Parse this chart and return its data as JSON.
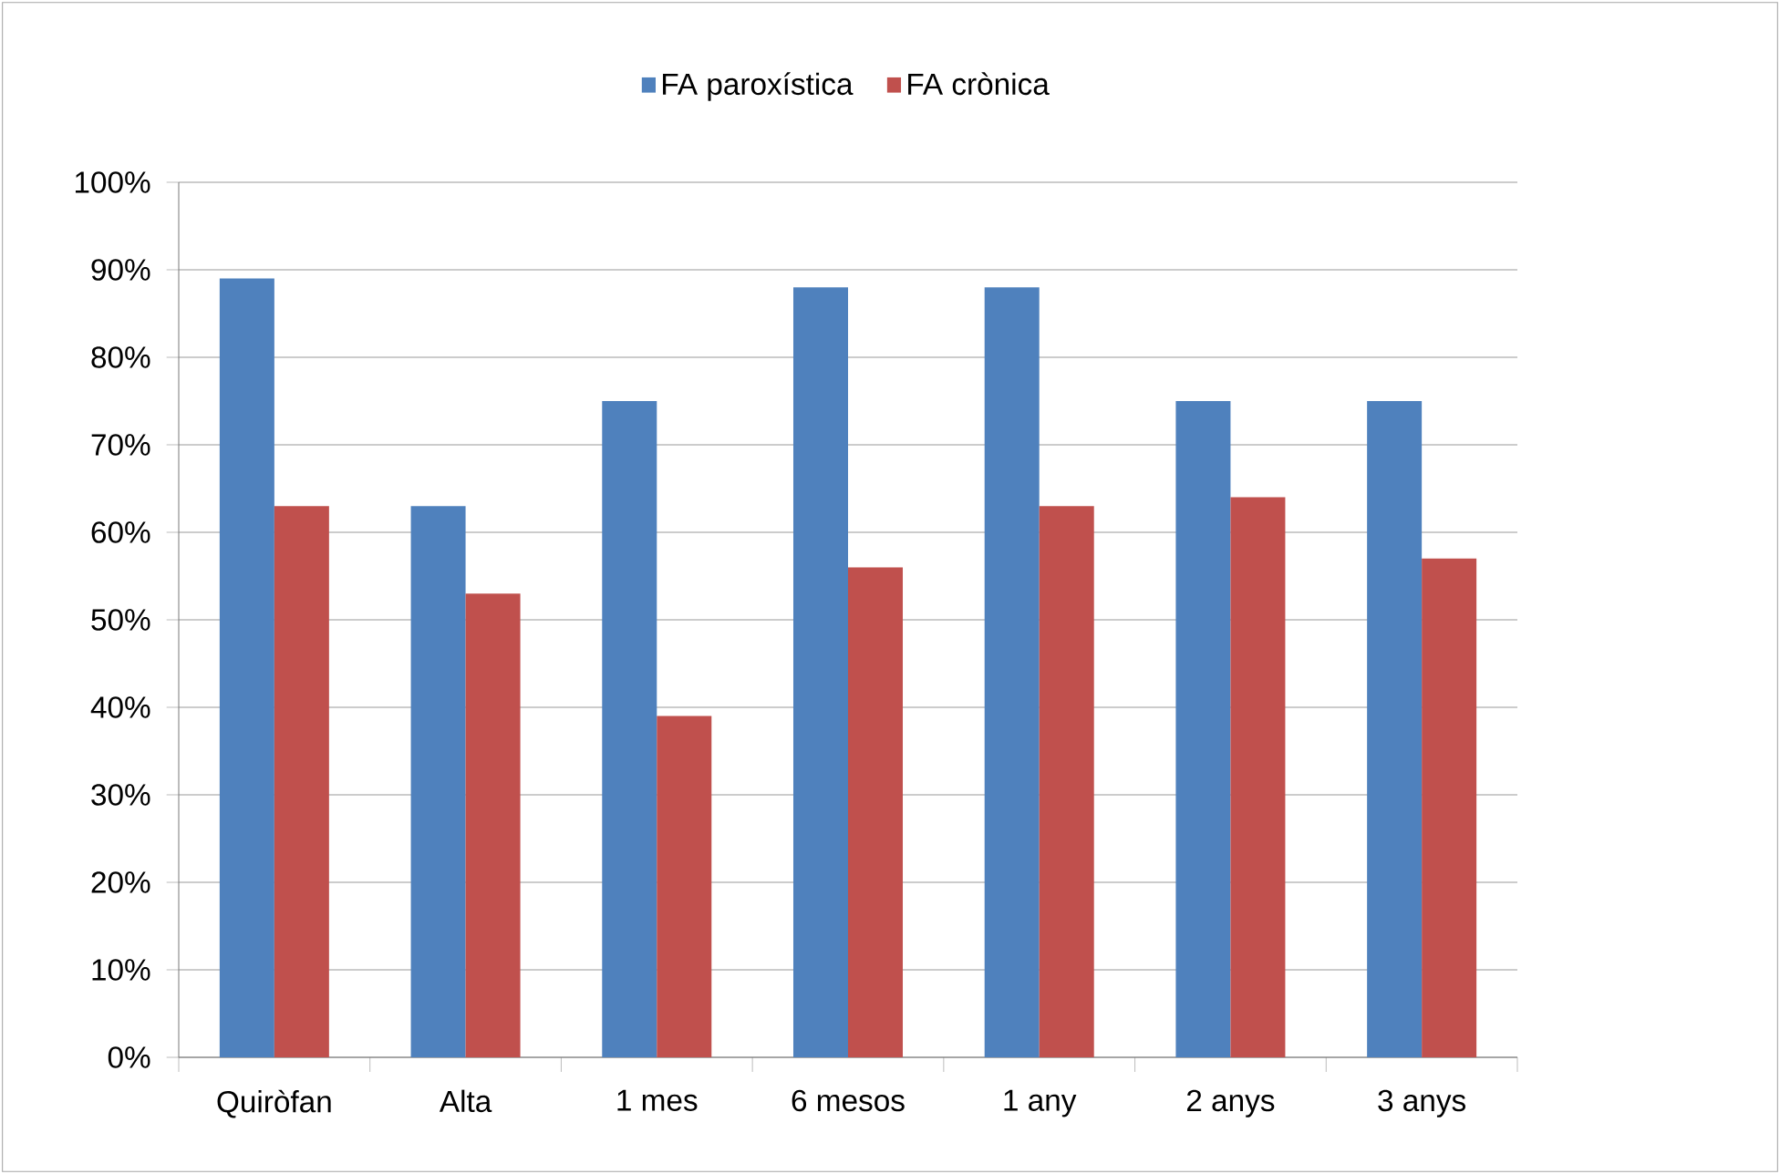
{
  "chart_data": {
    "type": "bar",
    "categories": [
      "Quiròfan",
      "Alta",
      "1 mes",
      "6 mesos",
      "1 any",
      "2 anys",
      "3 anys"
    ],
    "series": [
      {
        "name": "FA paroxística",
        "color": "#4f81bd",
        "values": [
          89,
          63,
          75,
          88,
          88,
          75,
          75
        ]
      },
      {
        "name": "FA crònica",
        "color": "#c0504d",
        "values": [
          63,
          53,
          39,
          56,
          63,
          64,
          57
        ]
      }
    ],
    "ylim": [
      0,
      100
    ],
    "yticks": [
      {
        "value": 0,
        "label": "0%"
      },
      {
        "value": 10,
        "label": "10%"
      },
      {
        "value": 20,
        "label": "20%"
      },
      {
        "value": 30,
        "label": "30%"
      },
      {
        "value": 40,
        "label": "40%"
      },
      {
        "value": 50,
        "label": "50%"
      },
      {
        "value": 60,
        "label": "60%"
      },
      {
        "value": 70,
        "label": "70%"
      },
      {
        "value": 80,
        "label": "80%"
      },
      {
        "value": 90,
        "label": "90%"
      },
      {
        "value": 100,
        "label": "100%"
      }
    ],
    "grid": "y",
    "legend": "top"
  }
}
